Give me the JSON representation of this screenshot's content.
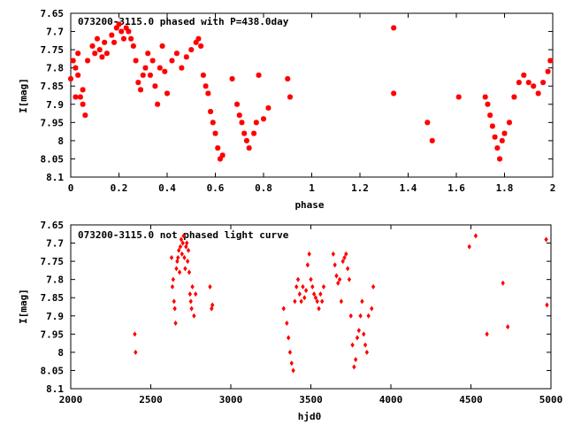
{
  "chart_data": [
    {
      "type": "scatter",
      "title": "073200-3115.0 phased with P=438.0day",
      "xlabel": "phase",
      "ylabel": "I[mag]",
      "xlim": [
        0,
        2
      ],
      "ylim": [
        8.1,
        7.65
      ],
      "y_inverted": true,
      "xticks": [
        "0",
        "0.2",
        "0.4",
        "0.6",
        "0.8",
        "1",
        "1.2",
        "1.4",
        "1.6",
        "1.8",
        "2"
      ],
      "xtick_values": [
        0,
        0.2,
        0.4,
        0.6,
        0.8,
        1.0,
        1.2,
        1.4,
        1.6,
        1.8,
        2.0
      ],
      "yticks": [
        "7.65",
        "7.7",
        "7.75",
        "7.8",
        "7.85",
        "7.9",
        "7.95",
        "8",
        "8.05",
        "8.1"
      ],
      "ytick_values": [
        7.65,
        7.7,
        7.75,
        7.8,
        7.85,
        7.9,
        7.95,
        8.0,
        8.05,
        8.1
      ],
      "marker": "star",
      "color": "#ff0000",
      "series": [
        {
          "x": [
            0.0,
            0.01,
            0.02,
            0.03,
            0.04,
            0.05,
            0.06,
            0.02,
            0.03,
            0.05,
            0.07,
            0.09,
            0.1,
            0.11,
            0.12,
            0.13,
            0.14,
            0.15,
            0.17,
            0.18,
            0.19,
            0.2,
            0.21,
            0.22,
            0.23,
            0.24,
            0.25,
            0.26,
            0.27,
            0.28,
            0.29,
            0.3,
            0.31,
            0.32,
            0.33,
            0.34,
            0.35,
            0.36,
            0.37,
            0.38,
            0.39,
            0.4,
            0.42,
            0.44,
            0.46,
            0.48,
            0.5,
            0.52,
            0.53,
            0.54,
            0.55,
            0.56,
            0.57,
            0.58,
            0.59,
            0.6,
            0.61,
            0.62,
            0.63,
            0.67,
            0.69,
            0.7,
            0.71,
            0.72,
            0.73,
            0.74,
            0.76,
            0.77,
            0.78,
            0.8,
            0.82,
            0.9,
            0.91,
            1.34,
            1.34,
            1.48,
            1.5,
            1.61,
            1.72,
            1.73,
            1.74,
            1.75,
            1.76,
            1.77,
            1.78,
            1.79,
            1.8,
            1.82,
            1.84,
            1.86,
            1.88,
            1.9,
            1.92,
            1.94,
            1.96,
            1.98,
            1.99
          ],
          "y": [
            7.83,
            7.78,
            7.8,
            7.76,
            7.88,
            7.9,
            7.93,
            7.88,
            7.82,
            7.86,
            7.78,
            7.74,
            7.76,
            7.72,
            7.75,
            7.77,
            7.73,
            7.76,
            7.71,
            7.73,
            7.69,
            7.68,
            7.7,
            7.72,
            7.69,
            7.7,
            7.72,
            7.74,
            7.78,
            7.84,
            7.86,
            7.82,
            7.8,
            7.76,
            7.82,
            7.78,
            7.85,
            7.9,
            7.8,
            7.74,
            7.81,
            7.87,
            7.78,
            7.76,
            7.8,
            7.77,
            7.75,
            7.73,
            7.72,
            7.74,
            7.82,
            7.85,
            7.87,
            7.92,
            7.95,
            7.98,
            8.02,
            8.05,
            8.04,
            7.83,
            7.9,
            7.93,
            7.95,
            7.98,
            8.0,
            8.02,
            7.98,
            7.95,
            7.82,
            7.94,
            7.91,
            7.83,
            7.88,
            7.69,
            7.87,
            7.95,
            8.0,
            7.88,
            7.88,
            7.9,
            7.93,
            7.96,
            7.99,
            8.02,
            8.05,
            8.0,
            7.98,
            7.95,
            7.88,
            7.84,
            7.82,
            7.84,
            7.85,
            7.87,
            7.84,
            7.81,
            7.78
          ]
        }
      ]
    },
    {
      "type": "scatter",
      "title": "073200-3115.0 not phased light curve",
      "xlabel": "hjd0",
      "ylabel": "I[mag]",
      "xlim": [
        2000,
        5000
      ],
      "ylim": [
        8.1,
        7.65
      ],
      "y_inverted": true,
      "xticks": [
        "2000",
        "2500",
        "3000",
        "3500",
        "4000",
        "4500",
        "5000"
      ],
      "xtick_values": [
        2000,
        2500,
        3000,
        3500,
        4000,
        4500,
        5000
      ],
      "yticks": [
        "7.65",
        "7.7",
        "7.75",
        "7.8",
        "7.85",
        "7.9",
        "7.95",
        "8",
        "8.05",
        "8.1"
      ],
      "ytick_values": [
        7.65,
        7.7,
        7.75,
        7.8,
        7.85,
        7.9,
        7.95,
        8.0,
        8.05,
        8.1
      ],
      "marker": "diamond",
      "color": "#ff0000",
      "series": [
        {
          "x": [
            2400,
            2405,
            2630,
            2635,
            2640,
            2645,
            2650,
            2655,
            2660,
            2665,
            2670,
            2675,
            2680,
            2685,
            2690,
            2695,
            2700,
            2705,
            2710,
            2715,
            2720,
            2725,
            2730,
            2735,
            2740,
            2745,
            2750,
            2755,
            2760,
            2770,
            2780,
            2870,
            2880,
            2885,
            3330,
            3350,
            3360,
            3370,
            3380,
            3390,
            3400,
            3410,
            3420,
            3430,
            3440,
            3450,
            3460,
            3470,
            3480,
            3490,
            3500,
            3510,
            3520,
            3530,
            3540,
            3550,
            3560,
            3570,
            3580,
            3640,
            3650,
            3660,
            3670,
            3680,
            3690,
            3700,
            3710,
            3720,
            3730,
            3740,
            3750,
            3760,
            3770,
            3780,
            3790,
            3800,
            3810,
            3820,
            3830,
            3840,
            3850,
            3860,
            3880,
            3890,
            4490,
            4530,
            4600,
            4700,
            4730,
            4970,
            4975
          ],
          "y": [
            7.95,
            8.0,
            7.74,
            7.82,
            7.8,
            7.86,
            7.88,
            7.92,
            7.77,
            7.75,
            7.74,
            7.72,
            7.78,
            7.71,
            7.69,
            7.73,
            7.7,
            7.68,
            7.74,
            7.77,
            7.71,
            7.7,
            7.75,
            7.72,
            7.78,
            7.84,
            7.86,
            7.88,
            7.82,
            7.9,
            7.84,
            7.82,
            7.88,
            7.87,
            7.88,
            7.92,
            7.96,
            8.0,
            8.03,
            8.05,
            7.86,
            7.82,
            7.8,
            7.84,
            7.86,
            7.82,
            7.85,
            7.83,
            7.76,
            7.73,
            7.8,
            7.82,
            7.84,
            7.85,
            7.86,
            7.88,
            7.84,
            7.86,
            7.82,
            7.73,
            7.76,
            7.79,
            7.81,
            7.8,
            7.86,
            7.75,
            7.74,
            7.73,
            7.77,
            7.8,
            7.9,
            7.98,
            8.04,
            8.02,
            7.96,
            7.94,
            7.9,
            7.86,
            7.95,
            7.98,
            8.0,
            7.9,
            7.88,
            7.82,
            7.71,
            7.68,
            7.95,
            7.81,
            7.93,
            7.69,
            7.87
          ]
        }
      ]
    }
  ]
}
